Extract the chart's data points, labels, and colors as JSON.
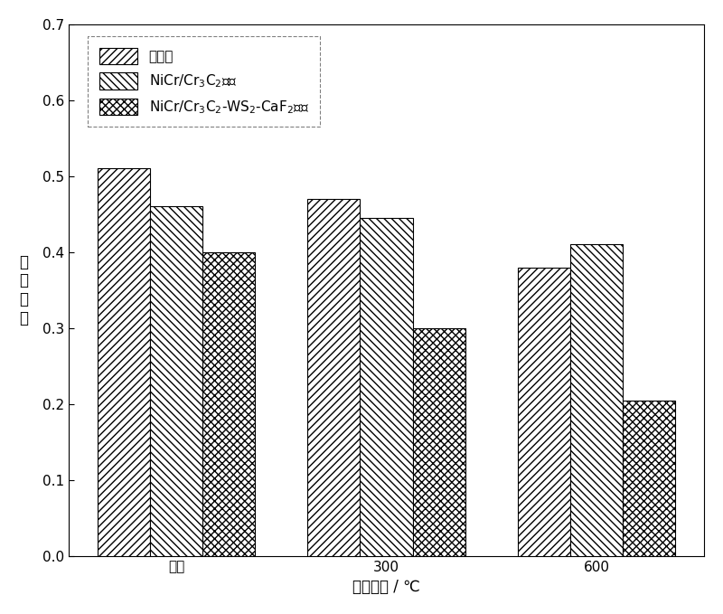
{
  "categories": [
    "室温",
    "300",
    "600"
  ],
  "series": [
    {
      "label": "不锈钓",
      "values": [
        0.51,
        0.47,
        0.38
      ],
      "hatch": "////"
    },
    {
      "label": "NiCr/Cr$_3$C$_2$涂层",
      "values": [
        0.46,
        0.445,
        0.41
      ],
      "hatch": "\\\\\\\\"
    },
    {
      "label": "NiCr/Cr$_3$C$_2$-WS$_2$-CaF$_2$涂层",
      "values": [
        0.4,
        0.3,
        0.205
      ],
      "hatch": "xxxx"
    }
  ],
  "ylabel_chars": [
    "摩",
    "擦",
    "系",
    "数"
  ],
  "xlabel": "测试温度 / ℃",
  "ylim": [
    0.0,
    0.7
  ],
  "yticks": [
    0.0,
    0.1,
    0.2,
    0.3,
    0.4,
    0.5,
    0.6,
    0.7
  ],
  "bar_width": 0.25,
  "facecolor": "white",
  "edgecolor": "black",
  "bar_facecolor": "white",
  "legend_fontsize": 11,
  "axis_fontsize": 12,
  "tick_fontsize": 11
}
